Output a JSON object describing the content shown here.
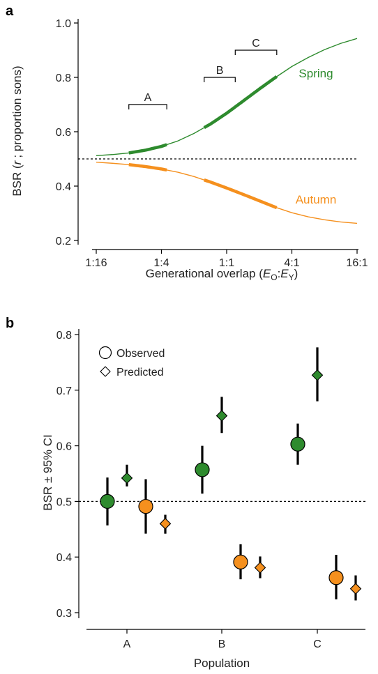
{
  "chart_data": [
    {
      "panel": "a",
      "type": "line",
      "title": "",
      "xlabel": "Generational overlap (EO:EY)",
      "xlabel_parts": {
        "prefix": "Generational overlap (",
        "e1": "E",
        "s1": "O",
        "colon": ":",
        "e2": "E",
        "s2": "Y",
        "suffix": ")"
      },
      "ylabel": "BSR (r ; proportion sons)",
      "ylabel_parts": {
        "prefix": "BSR (",
        "italic": "r",
        "suffix": "; proportion sons)"
      },
      "x_scale": "log2",
      "x_ticks": [
        {
          "value": 0.0625,
          "label": "1:16"
        },
        {
          "value": 0.25,
          "label": "1:4"
        },
        {
          "value": 1,
          "label": "1:1"
        },
        {
          "value": 4,
          "label": "4:1"
        },
        {
          "value": 16,
          "label": "16:1"
        }
      ],
      "ylim": [
        0.2,
        1.0
      ],
      "y_ticks": [
        {
          "value": 0.2,
          "label": "0.2"
        },
        {
          "value": 0.4,
          "label": "0.4"
        },
        {
          "value": 0.6,
          "label": "0.6"
        },
        {
          "value": 0.8,
          "label": "0.8"
        },
        {
          "value": 1.0,
          "label": "1.0"
        }
      ],
      "reference_line": 0.5,
      "series": [
        {
          "name": "Spring",
          "color": "#2e8b2e",
          "x": [
            0.0625,
            0.088,
            0.125,
            0.177,
            0.25,
            0.354,
            0.5,
            0.707,
            1,
            1.41,
            2,
            2.83,
            4,
            5.66,
            8,
            11.3,
            16
          ],
          "y": [
            0.512,
            0.516,
            0.522,
            0.532,
            0.546,
            0.566,
            0.594,
            0.628,
            0.668,
            0.712,
            0.757,
            0.8,
            0.84,
            0.873,
            0.902,
            0.925,
            0.943
          ]
        },
        {
          "name": "Autumn",
          "color": "#f5901e",
          "x": [
            0.0625,
            0.088,
            0.125,
            0.177,
            0.25,
            0.354,
            0.5,
            0.707,
            1,
            1.41,
            2,
            2.83,
            4,
            5.66,
            8,
            11.3,
            16
          ],
          "y": [
            0.488,
            0.484,
            0.479,
            0.472,
            0.463,
            0.451,
            0.435,
            0.415,
            0.393,
            0.37,
            0.346,
            0.322,
            0.302,
            0.287,
            0.276,
            0.268,
            0.263
          ]
        }
      ],
      "highlight_ranges": [
        {
          "label": "A",
          "x": [
            0.125,
            0.28
          ],
          "bracket_y": 0.7
        },
        {
          "label": "B",
          "x": [
            0.62,
            1.2
          ],
          "bracket_y": 0.8
        },
        {
          "label": "C",
          "x": [
            1.2,
            2.9
          ],
          "bracket_y": 0.9
        }
      ]
    },
    {
      "panel": "b",
      "type": "scatter",
      "title": "",
      "xlabel": "Population",
      "ylabel": "BSR ± 95% CI",
      "categories": [
        "A",
        "B",
        "C"
      ],
      "ylim": [
        0.3,
        0.8
      ],
      "y_ticks": [
        {
          "value": 0.3,
          "label": "0.3"
        },
        {
          "value": 0.4,
          "label": "0.4"
        },
        {
          "value": 0.5,
          "label": "0.5"
        },
        {
          "value": 0.6,
          "label": "0.6"
        },
        {
          "value": 0.7,
          "label": "0.7"
        },
        {
          "value": 0.8,
          "label": "0.8"
        }
      ],
      "reference_line": 0.5,
      "legend": {
        "placement": "top-left",
        "entries": [
          {
            "label": "Observed",
            "marker": "circle"
          },
          {
            "label": "Predicted",
            "marker": "diamond"
          }
        ]
      },
      "points": [
        {
          "category": "A",
          "season": "Spring",
          "kind": "Observed",
          "value": 0.5,
          "ci": [
            0.457,
            0.543
          ],
          "color": "#2e8b2e"
        },
        {
          "category": "A",
          "season": "Spring",
          "kind": "Predicted",
          "value": 0.542,
          "ci": [
            0.527,
            0.566
          ],
          "color": "#2e8b2e"
        },
        {
          "category": "A",
          "season": "Autumn",
          "kind": "Observed",
          "value": 0.491,
          "ci": [
            0.442,
            0.54
          ],
          "color": "#f5901e"
        },
        {
          "category": "A",
          "season": "Autumn",
          "kind": "Predicted",
          "value": 0.46,
          "ci": [
            0.442,
            0.476
          ],
          "color": "#f5901e"
        },
        {
          "category": "B",
          "season": "Spring",
          "kind": "Observed",
          "value": 0.557,
          "ci": [
            0.514,
            0.6
          ],
          "color": "#2e8b2e"
        },
        {
          "category": "B",
          "season": "Spring",
          "kind": "Predicted",
          "value": 0.654,
          "ci": [
            0.623,
            0.688
          ],
          "color": "#2e8b2e"
        },
        {
          "category": "B",
          "season": "Autumn",
          "kind": "Observed",
          "value": 0.391,
          "ci": [
            0.36,
            0.423
          ],
          "color": "#f5901e"
        },
        {
          "category": "B",
          "season": "Autumn",
          "kind": "Predicted",
          "value": 0.381,
          "ci": [
            0.362,
            0.401
          ],
          "color": "#f5901e"
        },
        {
          "category": "C",
          "season": "Spring",
          "kind": "Observed",
          "value": 0.603,
          "ci": [
            0.566,
            0.64
          ],
          "color": "#2e8b2e"
        },
        {
          "category": "C",
          "season": "Spring",
          "kind": "Predicted",
          "value": 0.727,
          "ci": [
            0.68,
            0.777
          ],
          "color": "#2e8b2e"
        },
        {
          "category": "C",
          "season": "Autumn",
          "kind": "Observed",
          "value": 0.363,
          "ci": [
            0.324,
            0.404
          ],
          "color": "#f5901e"
        },
        {
          "category": "C",
          "season": "Autumn",
          "kind": "Predicted",
          "value": 0.343,
          "ci": [
            0.322,
            0.367
          ],
          "color": "#f5901e"
        }
      ]
    }
  ]
}
